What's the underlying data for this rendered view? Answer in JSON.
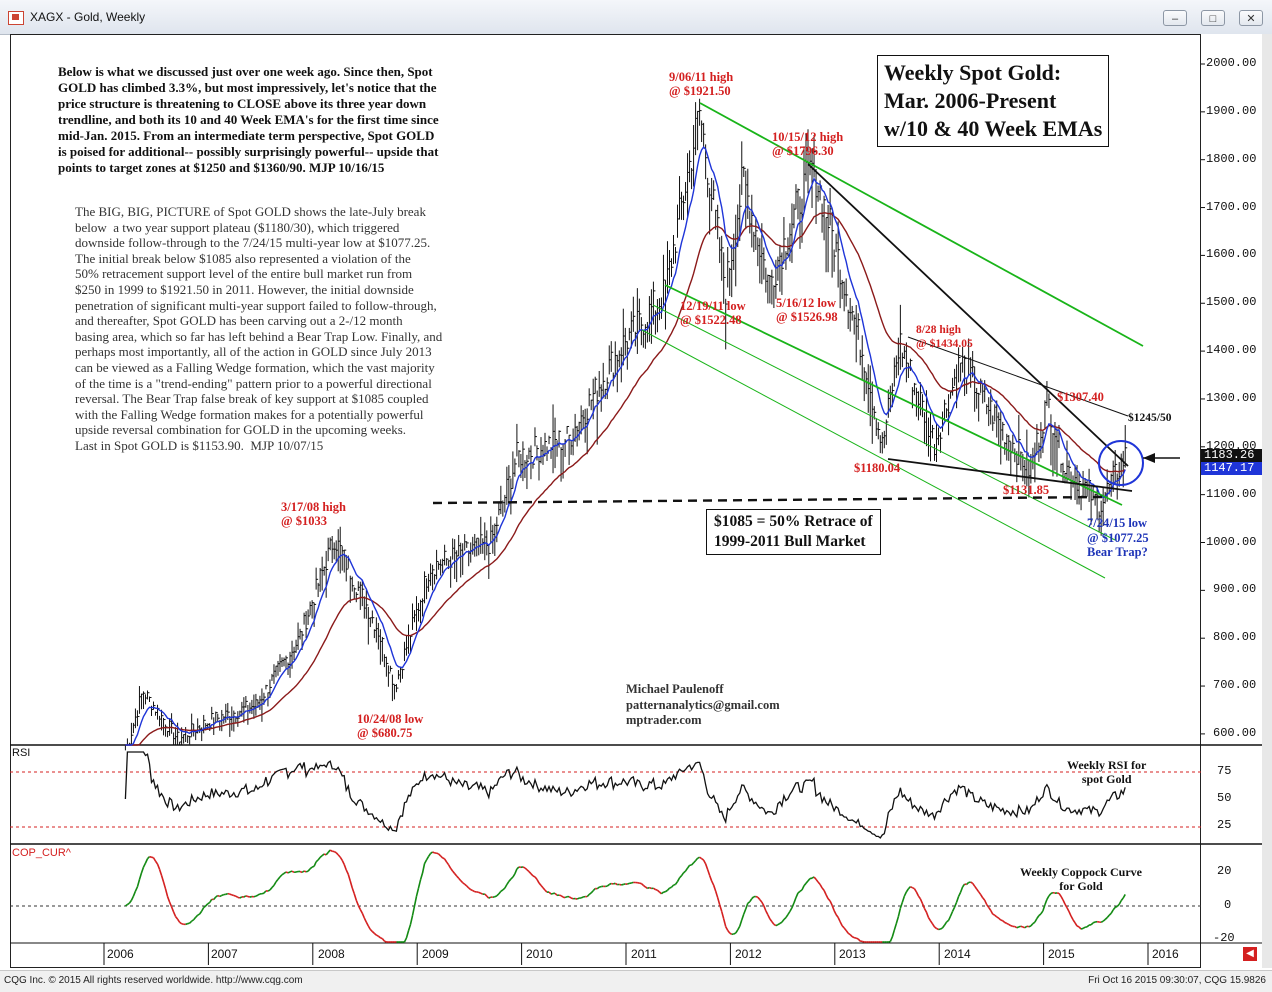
{
  "window": {
    "title": "XAGX - Gold, Weekly"
  },
  "notes": {
    "top": "Below is what we discussed just over one week ago. Since then, Spot\nGOLD has climbed 3.3%, but most impressively, let's notice that the\nprice structure is threatening to CLOSE above its three year down\ntrendline, and both its 10 and 40 Week EMA's for the first time since\nmid-Jan. 2015. From an intermediate term perspective, Spot GOLD\nis poised for additional-- possibly surprisingly powerful-- upside that\npoints to target zones at $1250 and $1360/90. MJP 10/16/15",
    "second": "The BIG, BIG, PICTURE of Spot GOLD shows the late-July break\nbelow  a two year support plateau ($1180/30), which triggered\ndownside follow-through to the 7/24/15 multi-year low at $1077.25.\nThe initial break below $1085 also represented a violation of the\n50% retracement support level of the entire bull market run from\n$250 in 1999 to $1921.50 in 2011. However, the initial downside\npenetration of significant multi-year support failed to follow-through,\nand thereafter, Spot GOLD has been carving out a 2-/12 month\nbasing area, which so far has left behind a Bear Trap Low. Finally, and\nperhaps most importantly, all of the action in GOLD since July 2013\ncan be viewed as a Falling Wedge formation, which the vast majority\nof the time is a \"trend-ending\" pattern prior to a powerful directional\nreversal. The Bear Trap false break of key support at $1085 coupled\nwith the Falling Wedge formation makes for a potentially powerful\nupside reversal combination for GOLD in the upcoming weeks.\nLast in Spot GOLD is $1153.90.  MJP 10/07/15"
  },
  "title_box": "Weekly Spot Gold:\nMar. 2006-Present\nw/10 & 40 Week EMAs",
  "retrace_box": "$1085 = 50% Retrace of\n1999-2011 Bull Market",
  "annotations": {
    "high_2011": "9/06/11 high\n@ $1921.50",
    "high_2012": "10/15/12 high\n@ $1796.30",
    "low_2011": "12/19/11 low\n@ $1522.48",
    "low_2012": "5/16/12 low\n@ $1526.98",
    "high_2013": "8/28 high\n@ $1434.05",
    "low_1180": "$1180.04",
    "high_1307": "$1307.40",
    "low_1131": "$1131.85",
    "target_1245": "$1245/50",
    "low_2015": "7/24/15 low\n@ $1077.25\nBear Trap?",
    "high_2008": "3/17/08 high\n@ $1033",
    "low_2008": "10/24/08 low\n@ $680.75",
    "author": "Michael Paulenoff\npatternanalytics@gmail.com\nmptrader.com",
    "rsi_note": "Weekly RSI for\nspot Gold",
    "coppock_note": "Weekly Coppock Curve\nfor Gold"
  },
  "price_axis": [
    "2000.00",
    "1900.00",
    "1800.00",
    "1700.00",
    "1600.00",
    "1500.00",
    "1400.00",
    "1300.00",
    "1200.00",
    "1100.00",
    "1000.00",
    "900.00",
    "800.00",
    "700.00",
    "600.00"
  ],
  "price_tags": {
    "last": "1183.26",
    "ema": "1147.17"
  },
  "rsi_axis": [
    "75",
    "50",
    "25"
  ],
  "cop_axis": [
    "20",
    "0",
    "-20"
  ],
  "panel_labels": {
    "rsi": "RSI",
    "cop": "COP_CUR^"
  },
  "years": [
    "2006",
    "2007",
    "2008",
    "2009",
    "2010",
    "2011",
    "2012",
    "2013",
    "2014",
    "2015",
    "2016"
  ],
  "status": {
    "left": "CQG Inc. © 2015 All rights reserved worldwide. http://www.cqg.com",
    "right": "Fri Oct 16 2015 09:30:07, CQG 15.9826"
  },
  "colors": {
    "price": "#111111",
    "ema10": "#1f35d8",
    "ema40": "#8b1a1a",
    "channel": "#19b419",
    "annotation_red": "#d42020",
    "annotation_blue": "#1f35b8",
    "coppock_up": "#138a13",
    "coppock_down": "#d42020"
  },
  "chart_data": {
    "type": "line",
    "title": "Weekly Spot Gold: Mar. 2006-Present w/10 & 40 Week EMAs",
    "x": [
      "2006-03",
      "2006-05",
      "2006-09",
      "2007-01",
      "2007-06",
      "2007-11",
      "2008-03",
      "2008-08",
      "2008-10",
      "2009-02",
      "2009-09",
      "2009-12",
      "2010-06",
      "2010-12",
      "2011-05",
      "2011-09",
      "2011-12",
      "2012-02",
      "2012-05",
      "2012-10",
      "2012-12",
      "2013-04",
      "2013-06",
      "2013-08",
      "2013-12",
      "2014-03",
      "2014-06",
      "2014-11",
      "2015-01",
      "2015-03",
      "2015-07",
      "2015-10"
    ],
    "series": [
      {
        "name": "Spot Gold (weekly)",
        "values": [
          560,
          690,
          590,
          630,
          660,
          800,
          1010,
          820,
          700,
          950,
          1000,
          1180,
          1220,
          1410,
          1520,
          1900,
          1530,
          1760,
          1540,
          1790,
          1660,
          1380,
          1200,
          1420,
          1210,
          1380,
          1290,
          1150,
          1300,
          1160,
          1080,
          1183
        ]
      }
    ],
    "ylim": [
      575,
      2060
    ],
    "yticks": [
      600,
      700,
      800,
      900,
      1000,
      1100,
      1200,
      1300,
      1400,
      1500,
      1600,
      1700,
      1800,
      1900,
      2000
    ]
  }
}
